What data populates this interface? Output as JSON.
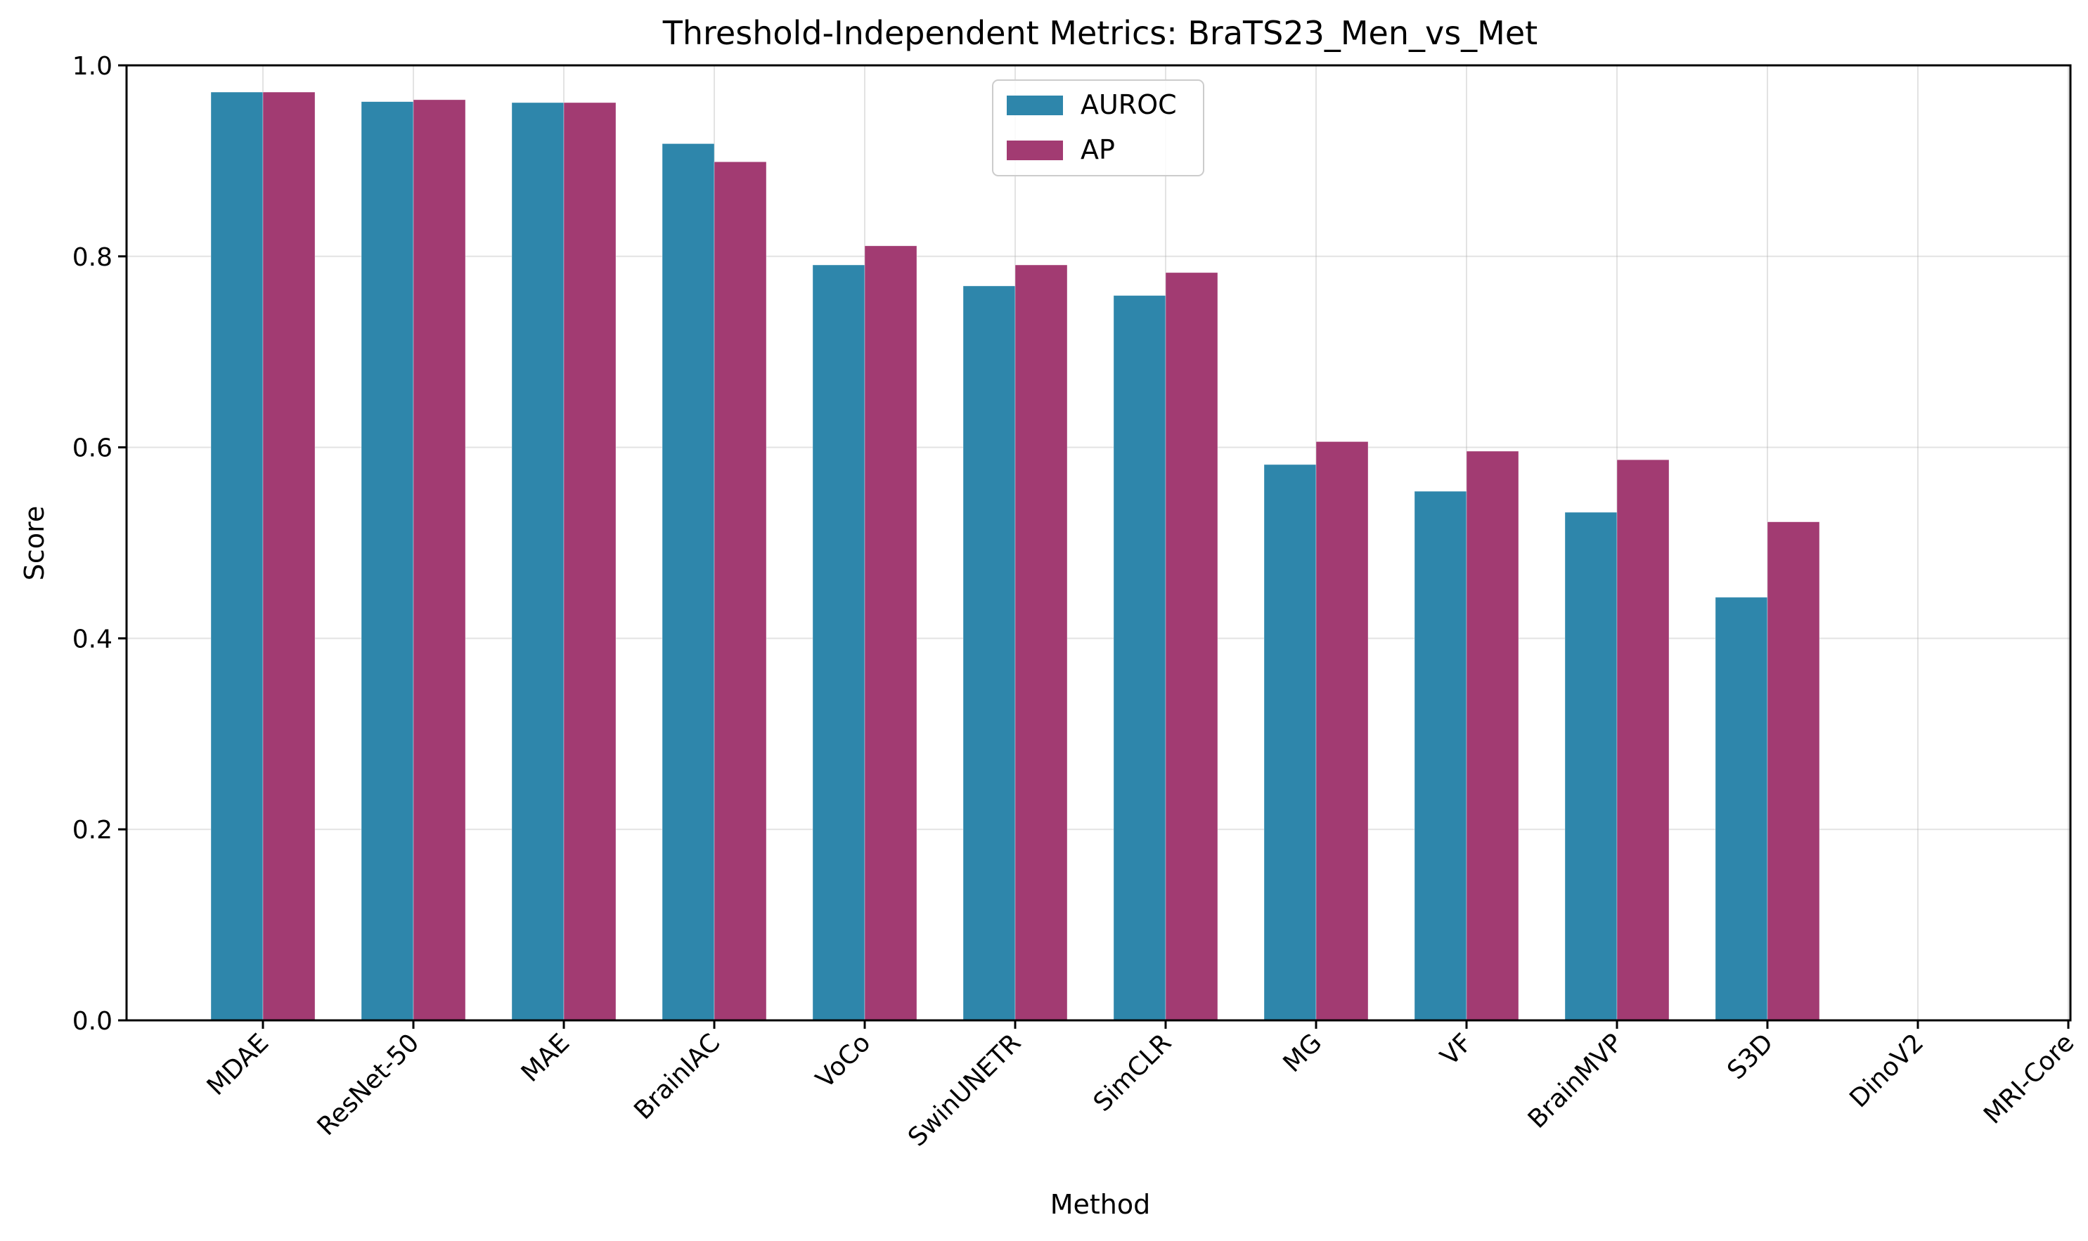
{
  "chart_data": {
    "type": "bar",
    "title": "Threshold-Independent Metrics: BraTS23_Men_vs_Met",
    "xlabel": "Method",
    "ylabel": "Score",
    "ylim": [
      0,
      1.0
    ],
    "yticks": [
      "0.0",
      "0.2",
      "0.4",
      "0.6",
      "0.8",
      "1.0"
    ],
    "grid": true,
    "legend_position": "top-center",
    "categories": [
      "MDAE",
      "ResNet-50",
      "MAE",
      "BrainIAC",
      "VoCo",
      "SwinUNETR",
      "SimCLR",
      "MG",
      "VF",
      "BrainMVP",
      "S3D",
      "DinoV2",
      "MRI-Core"
    ],
    "series": [
      {
        "name": "AUROC",
        "color": "#2e86ab",
        "values": [
          0.972,
          0.962,
          0.961,
          0.918,
          0.791,
          0.769,
          0.759,
          0.582,
          0.554,
          0.532,
          0.443,
          null,
          null
        ]
      },
      {
        "name": "AP",
        "color": "#a23b72",
        "values": [
          0.972,
          0.964,
          0.961,
          0.899,
          0.811,
          0.791,
          0.783,
          0.606,
          0.596,
          0.587,
          0.522,
          null,
          null
        ]
      }
    ]
  }
}
